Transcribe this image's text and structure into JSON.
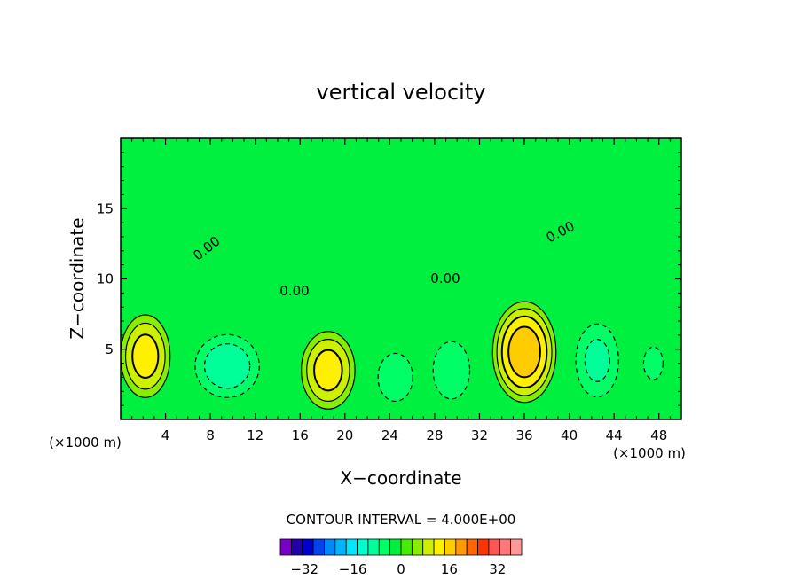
{
  "chart_data": {
    "type": "contour",
    "title": "vertical velocity",
    "xlabel": "X−coordinate",
    "ylabel": "Z−coordinate",
    "x_unit_left": "(×1000 m)",
    "x_unit_right": "(×1000 m)",
    "xlim": [
      0,
      50
    ],
    "ylim": [
      0,
      20
    ],
    "x_ticks": [
      4,
      8,
      12,
      16,
      20,
      24,
      28,
      32,
      36,
      40,
      44,
      48
    ],
    "y_ticks": [
      5,
      10,
      15
    ],
    "contour_interval_text": "CONTOUR INTERVAL = 4.000E+00",
    "contour_interval": 4,
    "zero_contour_labels": [
      "0.00",
      "0.00",
      "0.00",
      "0.00"
    ],
    "colorbar": {
      "tick_labels": [
        "−32",
        "−16",
        "0",
        "16",
        "32"
      ],
      "tick_values": [
        -32,
        -16,
        0,
        16,
        32
      ],
      "min": -40,
      "max": 40,
      "colors": [
        "#7a00c8",
        "#2200aa",
        "#0000cc",
        "#0044ee",
        "#0088ff",
        "#00b4ff",
        "#00e6ff",
        "#00ffcc",
        "#00ff99",
        "#00ff66",
        "#00f040",
        "#44ee00",
        "#88ee00",
        "#ccf000",
        "#fff000",
        "#ffcc00",
        "#ff9900",
        "#ff6600",
        "#ff3300",
        "#ff5555",
        "#ff7777",
        "#ff9999"
      ]
    },
    "cells": [
      {
        "x": 2.2,
        "z": 4.5,
        "peak": 13,
        "rx": 2.4,
        "rz": 3.2
      },
      {
        "x": 9.5,
        "z": 3.8,
        "peak": -10,
        "rx": 3.2,
        "rz": 2.5
      },
      {
        "x": 18.5,
        "z": 3.5,
        "peak": 13,
        "rx": 2.6,
        "rz": 3.0
      },
      {
        "x": 24.5,
        "z": 3.0,
        "peak": -5,
        "rx": 2.0,
        "rz": 2.2
      },
      {
        "x": 29.5,
        "z": 3.5,
        "peak": -6,
        "rx": 2.0,
        "rz": 2.5
      },
      {
        "x": 36.0,
        "z": 4.8,
        "peak": 18,
        "rx": 3.0,
        "rz": 3.8
      },
      {
        "x": 42.5,
        "z": 4.2,
        "peak": -8,
        "rx": 2.2,
        "rz": 3.0
      },
      {
        "x": 47.5,
        "z": 4.0,
        "peak": -3,
        "rx": 1.5,
        "rz": 2.0
      }
    ]
  }
}
